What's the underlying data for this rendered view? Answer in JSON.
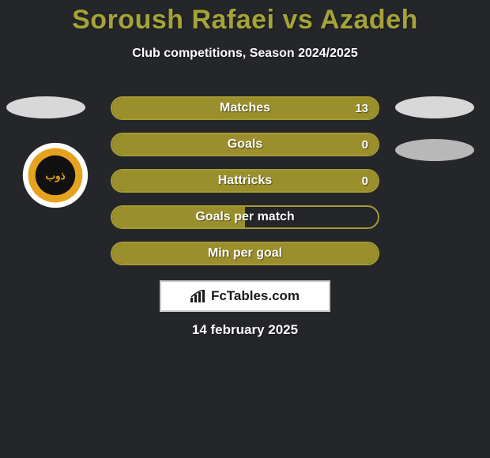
{
  "title": "Soroush Rafaei vs Azadeh",
  "subtitle": "Club competitions, Season 2024/2025",
  "colors": {
    "background": "#24262a",
    "title_color": "#a6a336",
    "text_color": "#ffffff",
    "bar_fill": "#9a8f2c",
    "bar_border": "#a69a33",
    "marker_light": "#d8d8d8",
    "marker_dark": "#b8b8b8"
  },
  "bars": [
    {
      "label": "Matches",
      "value": "13",
      "fill_pct": 100
    },
    {
      "label": "Goals",
      "value": "0",
      "fill_pct": 100
    },
    {
      "label": "Hattricks",
      "value": "0",
      "fill_pct": 100
    },
    {
      "label": "Goals per match",
      "value": "",
      "fill_pct": 50
    },
    {
      "label": "Min per goal",
      "value": "",
      "fill_pct": 100
    }
  ],
  "badge_text": "FcTables.com",
  "date": "14 february 2025",
  "team_logo": {
    "outer": "#ffffff",
    "ring": "#e6a21f",
    "inner": "#111111"
  }
}
